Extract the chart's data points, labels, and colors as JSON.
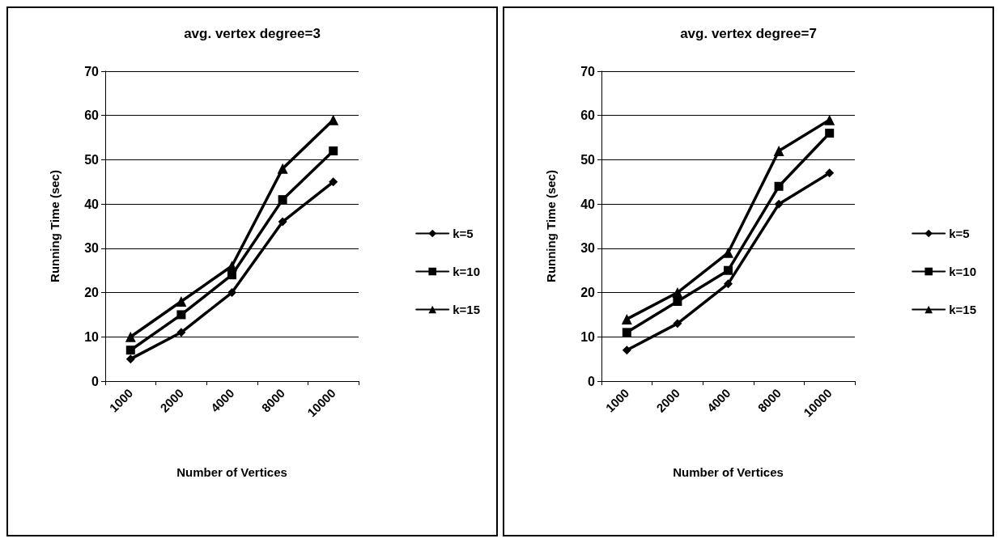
{
  "chart_data": [
    {
      "type": "line",
      "title": "avg. vertex degree=3",
      "xlabel": "Number of Vertices",
      "ylabel": "Running Time (sec)",
      "categories": [
        "1000",
        "2000",
        "4000",
        "8000",
        "10000"
      ],
      "ylim": [
        0,
        70
      ],
      "yticks": [
        0,
        10,
        20,
        30,
        40,
        50,
        60,
        70
      ],
      "grid": "y",
      "legend": "right",
      "series": [
        {
          "name": "k=5",
          "color": "#000000",
          "marker": "diamond",
          "values": [
            5,
            11,
            20,
            36,
            45
          ]
        },
        {
          "name": "k=10",
          "color": "#000000",
          "marker": "square",
          "values": [
            7,
            15,
            24,
            41,
            52
          ]
        },
        {
          "name": "k=15",
          "color": "#000000",
          "marker": "triangle",
          "values": [
            10,
            18,
            26,
            48,
            59
          ]
        }
      ]
    },
    {
      "type": "line",
      "title": "avg. vertex degree=7",
      "xlabel": "Number of Vertices",
      "ylabel": "Running Time (sec)",
      "categories": [
        "1000",
        "2000",
        "4000",
        "8000",
        "10000"
      ],
      "ylim": [
        0,
        70
      ],
      "yticks": [
        0,
        10,
        20,
        30,
        40,
        50,
        60,
        70
      ],
      "grid": "y",
      "legend": "right",
      "series": [
        {
          "name": "k=5",
          "color": "#000000",
          "marker": "diamond",
          "values": [
            7,
            13,
            22,
            40,
            47
          ]
        },
        {
          "name": "k=10",
          "color": "#000000",
          "marker": "square",
          "values": [
            11,
            18,
            25,
            44,
            56
          ]
        },
        {
          "name": "k=15",
          "color": "#000000",
          "marker": "triangle",
          "values": [
            14,
            20,
            29,
            52,
            59
          ]
        }
      ]
    }
  ]
}
